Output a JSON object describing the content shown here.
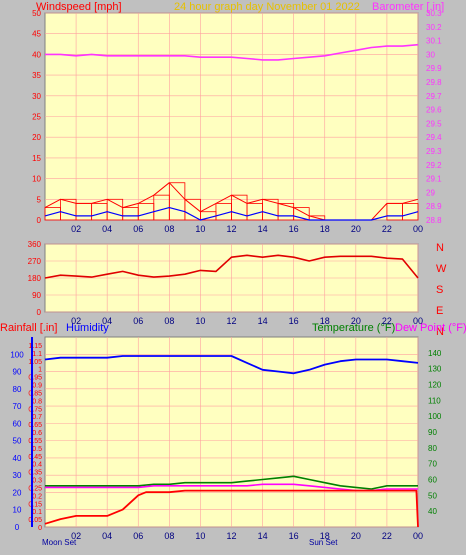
{
  "header": {
    "wind_label": "Windspeed [mph]",
    "title": "24 hour graph day   November 01 2022",
    "baro_label": "Barometer [.in]"
  },
  "bottom_header": {
    "rain_label": "Rainfall [.in]",
    "humidity_label": "Humidity",
    "temp_label": "Temperature (°F)",
    "dew_label": "Dew Point (°F)"
  },
  "compass": [
    "N",
    "W",
    "S",
    "E",
    "N"
  ],
  "events": {
    "moonset": "Moon Set",
    "sunset": "Sun Set"
  },
  "colors": {
    "wind": "#ff0000",
    "gust_avg": "#0000ff",
    "barometer": "#ff33ff",
    "direction": "#e00000",
    "humidity": "#0000ff",
    "temperature": "#008000",
    "dewpoint": "#ff00ff",
    "rain": "#ff0000",
    "plot_bg": "#ffffc0",
    "grid": "#ffa0a0"
  },
  "chart_data": [
    {
      "type": "line",
      "title": "24 hour graph day   November 01 2022",
      "ylabel": "Windspeed [mph]",
      "y2label": "Barometer [.in]",
      "x_ticks": [
        "02",
        "04",
        "06",
        "08",
        "10",
        "12",
        "14",
        "16",
        "18",
        "20",
        "22",
        "00"
      ],
      "ylim": [
        0,
        50
      ],
      "y_ticks": [
        0,
        5,
        10,
        15,
        20,
        25,
        30,
        35,
        40,
        45,
        50
      ],
      "y2lim": [
        28.8,
        30.3
      ],
      "y2_ticks": [
        28.8,
        28.9,
        29,
        29.1,
        29.2,
        29.3,
        29.4,
        29.5,
        29.6,
        29.7,
        29.8,
        29.9,
        30,
        30.1,
        30.2,
        30.3
      ],
      "series": [
        {
          "name": "Barometer [.in]",
          "axis": "right",
          "x": [
            0,
            1,
            2,
            3,
            4,
            5,
            6,
            7,
            8,
            9,
            10,
            11,
            12,
            13,
            14,
            15,
            16,
            17,
            18,
            19,
            20,
            21,
            22,
            23,
            24
          ],
          "values": [
            30.0,
            30.0,
            29.99,
            30.0,
            29.99,
            29.99,
            29.99,
            29.99,
            29.99,
            29.99,
            29.98,
            29.98,
            29.98,
            29.97,
            29.96,
            29.96,
            29.97,
            29.98,
            29.99,
            30.01,
            30.03,
            30.05,
            30.06,
            30.06,
            30.07
          ]
        },
        {
          "name": "Windspeed [mph]",
          "axis": "left",
          "x": [
            0,
            1,
            2,
            3,
            4,
            5,
            6,
            7,
            8,
            9,
            10,
            11,
            12,
            13,
            14,
            15,
            16,
            17,
            18,
            19,
            20,
            21,
            22,
            23,
            24
          ],
          "values": [
            3,
            5,
            4,
            4,
            5,
            3,
            4,
            6,
            9,
            5,
            2,
            4,
            6,
            4,
            5,
            4,
            3,
            1,
            0,
            0,
            0,
            0,
            4,
            4,
            5
          ]
        },
        {
          "name": "Wind average",
          "axis": "left",
          "x": [
            0,
            1,
            2,
            3,
            4,
            5,
            6,
            7,
            8,
            9,
            10,
            11,
            12,
            13,
            14,
            15,
            16,
            17,
            18,
            19,
            20,
            21,
            22,
            23,
            24
          ],
          "values": [
            1,
            2,
            1,
            1,
            2,
            1,
            1,
            2,
            3,
            2,
            0,
            1,
            2,
            1,
            2,
            1,
            1,
            0,
            0,
            0,
            0,
            0,
            1,
            1,
            2
          ]
        }
      ]
    },
    {
      "type": "line",
      "ylim": [
        0,
        360
      ],
      "y_ticks": [
        0,
        90,
        180,
        270,
        360
      ],
      "x_ticks": [
        "02",
        "04",
        "06",
        "08",
        "10",
        "12",
        "14",
        "16",
        "18",
        "20",
        "22",
        "00"
      ],
      "series": [
        {
          "name": "Wind direction",
          "x": [
            0,
            1,
            2,
            3,
            4,
            5,
            6,
            7,
            8,
            9,
            10,
            11,
            12,
            13,
            14,
            15,
            16,
            17,
            18,
            19,
            20,
            21,
            22,
            23,
            24
          ],
          "values": [
            180,
            195,
            190,
            185,
            200,
            215,
            195,
            185,
            190,
            200,
            220,
            215,
            290,
            300,
            290,
            300,
            290,
            270,
            290,
            295,
            295,
            295,
            285,
            280,
            180
          ]
        }
      ]
    },
    {
      "type": "line",
      "ylabel": "Rainfall [.in]",
      "y2label": "Temperature (°F)",
      "x_ticks": [
        "02",
        "04",
        "06",
        "08",
        "10",
        "12",
        "14",
        "16",
        "18",
        "20",
        "22",
        "00"
      ],
      "ylim": [
        0,
        1.2
      ],
      "y_ticks": [
        0,
        0.05,
        0.1,
        0.15,
        0.2,
        0.25,
        0.3,
        0.35,
        0.4,
        0.45,
        0.5,
        0.55,
        0.6,
        0.65,
        0.7,
        0.75,
        0.8,
        0.85,
        0.9,
        0.95,
        1,
        1.05,
        1.1,
        1.15
      ],
      "humidity_ticks": [
        0,
        10,
        20,
        30,
        40,
        50,
        60,
        70,
        80,
        90,
        100
      ],
      "y2lim": [
        30,
        150
      ],
      "y2_ticks": [
        40,
        50,
        60,
        70,
        80,
        90,
        100,
        110,
        120,
        130,
        140
      ],
      "series": [
        {
          "name": "Humidity",
          "axis": "humidity",
          "x": [
            0,
            1,
            2,
            3,
            4,
            5,
            6,
            7,
            8,
            9,
            10,
            11,
            12,
            13,
            14,
            15,
            16,
            17,
            18,
            19,
            20,
            21,
            22,
            23,
            24
          ],
          "values": [
            97,
            98,
            98,
            98,
            98,
            99,
            99,
            99,
            99,
            99,
            99,
            99,
            99,
            95,
            91,
            90,
            89,
            91,
            94,
            96,
            97,
            97,
            97,
            96,
            95
          ]
        },
        {
          "name": "Temperature (°F)",
          "axis": "right",
          "x": [
            0,
            1,
            2,
            3,
            4,
            5,
            6,
            7,
            8,
            9,
            10,
            11,
            12,
            13,
            14,
            15,
            16,
            17,
            18,
            19,
            20,
            21,
            22,
            23,
            24
          ],
          "values": [
            56,
            56,
            56,
            56,
            56,
            56,
            56,
            57,
            57,
            58,
            58,
            58,
            58,
            59,
            60,
            61,
            62,
            60,
            58,
            56,
            55,
            54,
            56,
            56,
            56
          ]
        },
        {
          "name": "Dew Point (°F)",
          "axis": "right",
          "x": [
            0,
            1,
            2,
            3,
            4,
            5,
            6,
            7,
            8,
            9,
            10,
            11,
            12,
            13,
            14,
            15,
            16,
            17,
            18,
            19,
            20,
            21,
            22,
            23,
            24
          ],
          "values": [
            55,
            55,
            55,
            55,
            55,
            55,
            55,
            56,
            56,
            56,
            56,
            56,
            56,
            56,
            57,
            57,
            57,
            56,
            55,
            54,
            53,
            53,
            54,
            54,
            54
          ]
        },
        {
          "name": "Rainfall [.in]",
          "axis": "left",
          "x": [
            0,
            1,
            2,
            3,
            4,
            5,
            6,
            6.5,
            7,
            8,
            9,
            10,
            11,
            12,
            13,
            14,
            15,
            16,
            17,
            18,
            19,
            20,
            21,
            22,
            23,
            23.9,
            24
          ],
          "values": [
            0.02,
            0.05,
            0.07,
            0.07,
            0.07,
            0.11,
            0.2,
            0.22,
            0.22,
            0.22,
            0.23,
            0.23,
            0.23,
            0.23,
            0.23,
            0.23,
            0.23,
            0.23,
            0.23,
            0.23,
            0.23,
            0.23,
            0.23,
            0.23,
            0.23,
            0.23,
            0.0
          ]
        }
      ]
    }
  ]
}
